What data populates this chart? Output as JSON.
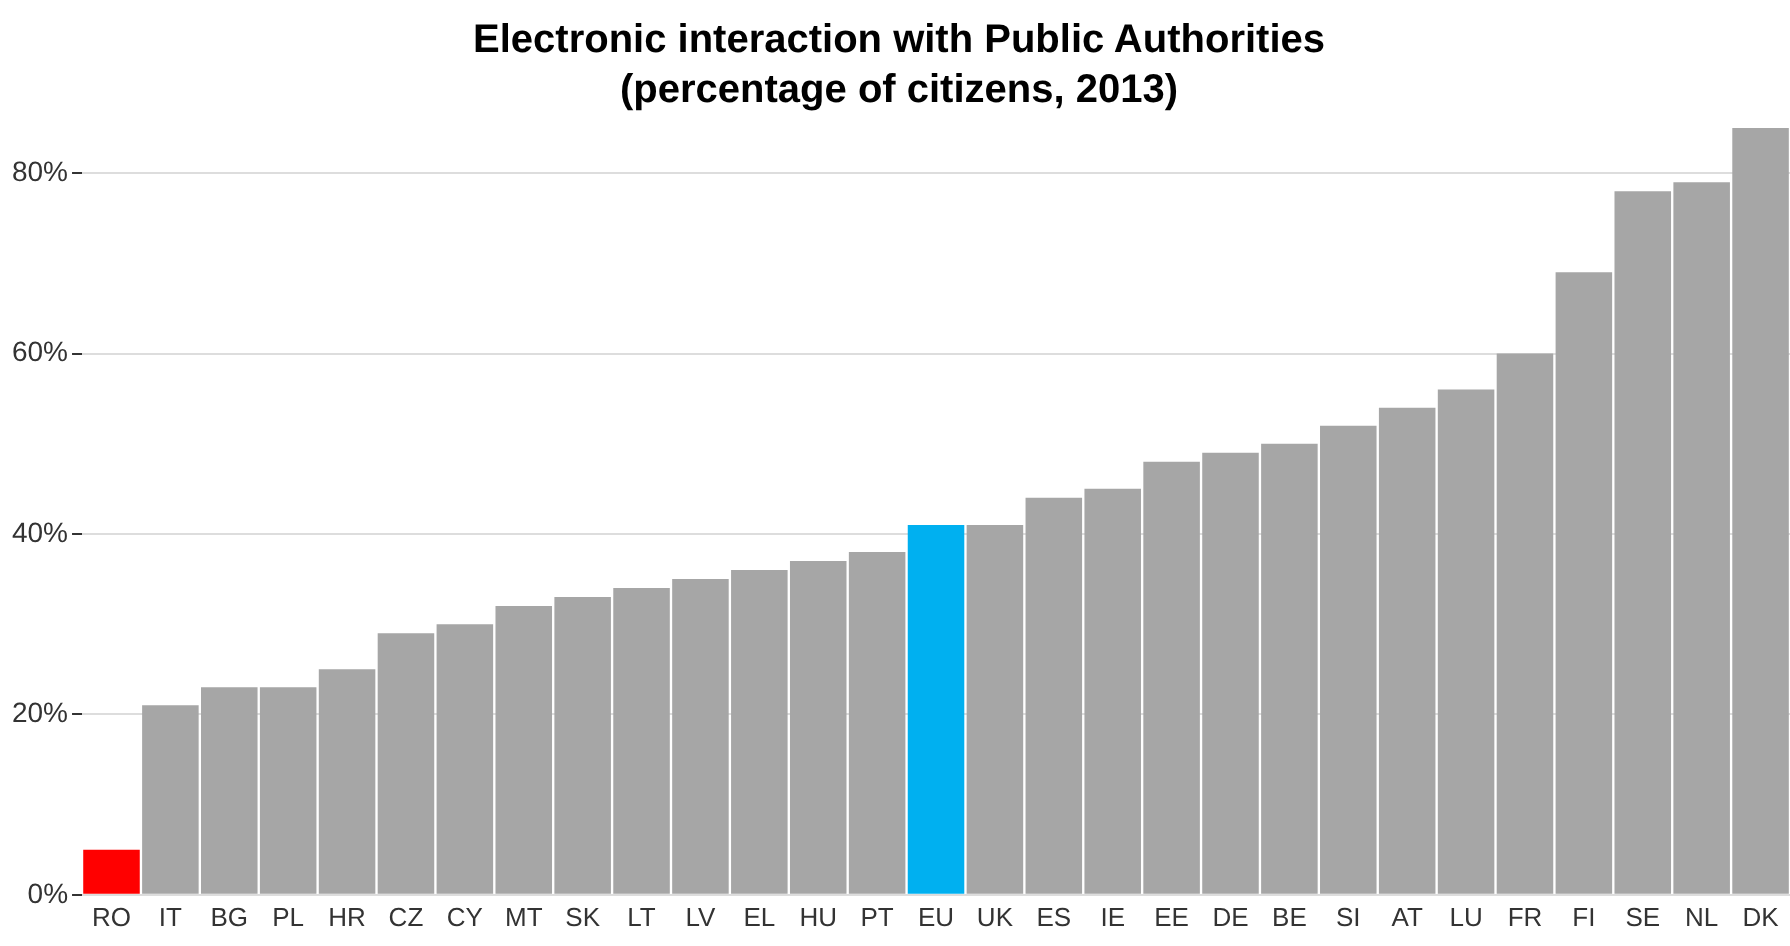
{
  "chart_data": {
    "type": "bar",
    "title": [
      "Electronic interaction with Public Authorities",
      "(percentage of citizens, 2013)"
    ],
    "categories": [
      "RO",
      "IT",
      "BG",
      "PL",
      "HR",
      "CZ",
      "CY",
      "MT",
      "SK",
      "LT",
      "LV",
      "EL",
      "HU",
      "PT",
      "EU",
      "UK",
      "ES",
      "IE",
      "EE",
      "DE",
      "BE",
      "SI",
      "AT",
      "LU",
      "FR",
      "FI",
      "SE",
      "NL",
      "DK"
    ],
    "values": [
      5,
      21,
      23,
      23,
      25,
      29,
      30,
      32,
      33,
      34,
      35,
      36,
      37,
      38,
      41,
      41,
      44,
      45,
      48,
      49,
      50,
      52,
      54,
      56,
      60,
      69,
      78,
      79,
      85
    ],
    "colors": [
      "#ff0000",
      "#a6a6a6",
      "#a6a6a6",
      "#a6a6a6",
      "#a6a6a6",
      "#a6a6a6",
      "#a6a6a6",
      "#a6a6a6",
      "#a6a6a6",
      "#a6a6a6",
      "#a6a6a6",
      "#a6a6a6",
      "#a6a6a6",
      "#a6a6a6",
      "#00b0f0",
      "#a6a6a6",
      "#a6a6a6",
      "#a6a6a6",
      "#a6a6a6",
      "#a6a6a6",
      "#a6a6a6",
      "#a6a6a6",
      "#a6a6a6",
      "#a6a6a6",
      "#a6a6a6",
      "#a6a6a6",
      "#a6a6a6",
      "#a6a6a6",
      "#a6a6a6"
    ],
    "ylim": [
      0,
      85
    ],
    "yticks": [
      {
        "value": 0,
        "label": "0%"
      },
      {
        "value": 20,
        "label": "20%"
      },
      {
        "value": 40,
        "label": "40%"
      },
      {
        "value": 60,
        "label": "60%"
      },
      {
        "value": 80,
        "label": "80%"
      }
    ],
    "grid": "y"
  }
}
